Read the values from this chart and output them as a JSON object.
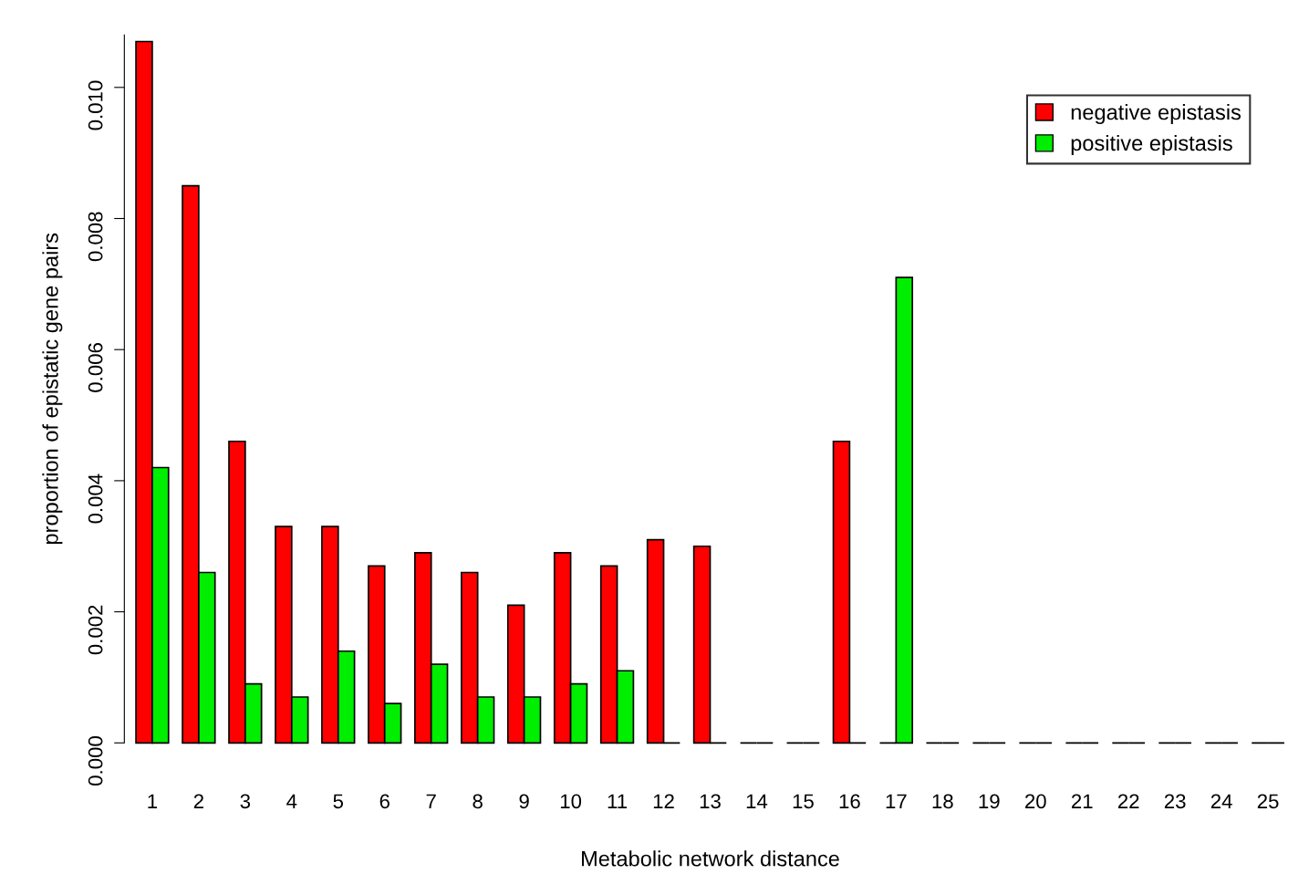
{
  "chart_data": {
    "type": "bar",
    "xlabel": "Metabolic network distance",
    "ylabel": "proportion of epistatic gene pairs",
    "categories": [
      "1",
      "2",
      "3",
      "4",
      "5",
      "6",
      "7",
      "8",
      "9",
      "10",
      "11",
      "12",
      "13",
      "14",
      "15",
      "16",
      "17",
      "18",
      "19",
      "20",
      "21",
      "22",
      "23",
      "24",
      "25"
    ],
    "series": [
      {
        "name": "negative epistasis",
        "color": "#ff0000",
        "values": [
          0.0107,
          0.0085,
          0.0046,
          0.0033,
          0.0033,
          0.0027,
          0.0029,
          0.0026,
          0.0021,
          0.0029,
          0.0027,
          0.0031,
          0.003,
          0,
          0,
          0.0046,
          0,
          0,
          0,
          0,
          0,
          0,
          0,
          0,
          0
        ]
      },
      {
        "name": "positive epistasis",
        "color": "#00ee00",
        "values": [
          0.0042,
          0.0026,
          0.0009,
          0.0007,
          0.0014,
          0.0006,
          0.0012,
          0.0007,
          0.0007,
          0.0009,
          0.0011,
          0,
          0,
          0,
          0,
          0,
          0.0071,
          0,
          0,
          0,
          0,
          0,
          0,
          0,
          0
        ]
      }
    ],
    "ylim": [
      0,
      0.0108
    ],
    "yticks": [
      {
        "value": 0,
        "label": "0.000"
      },
      {
        "value": 0.002,
        "label": "0.002"
      },
      {
        "value": 0.004,
        "label": "0.004"
      },
      {
        "value": 0.006,
        "label": "0.006"
      },
      {
        "value": 0.008,
        "label": "0.008"
      },
      {
        "value": 0.01,
        "label": "0.010"
      }
    ],
    "grid": false,
    "legend": "top right"
  }
}
